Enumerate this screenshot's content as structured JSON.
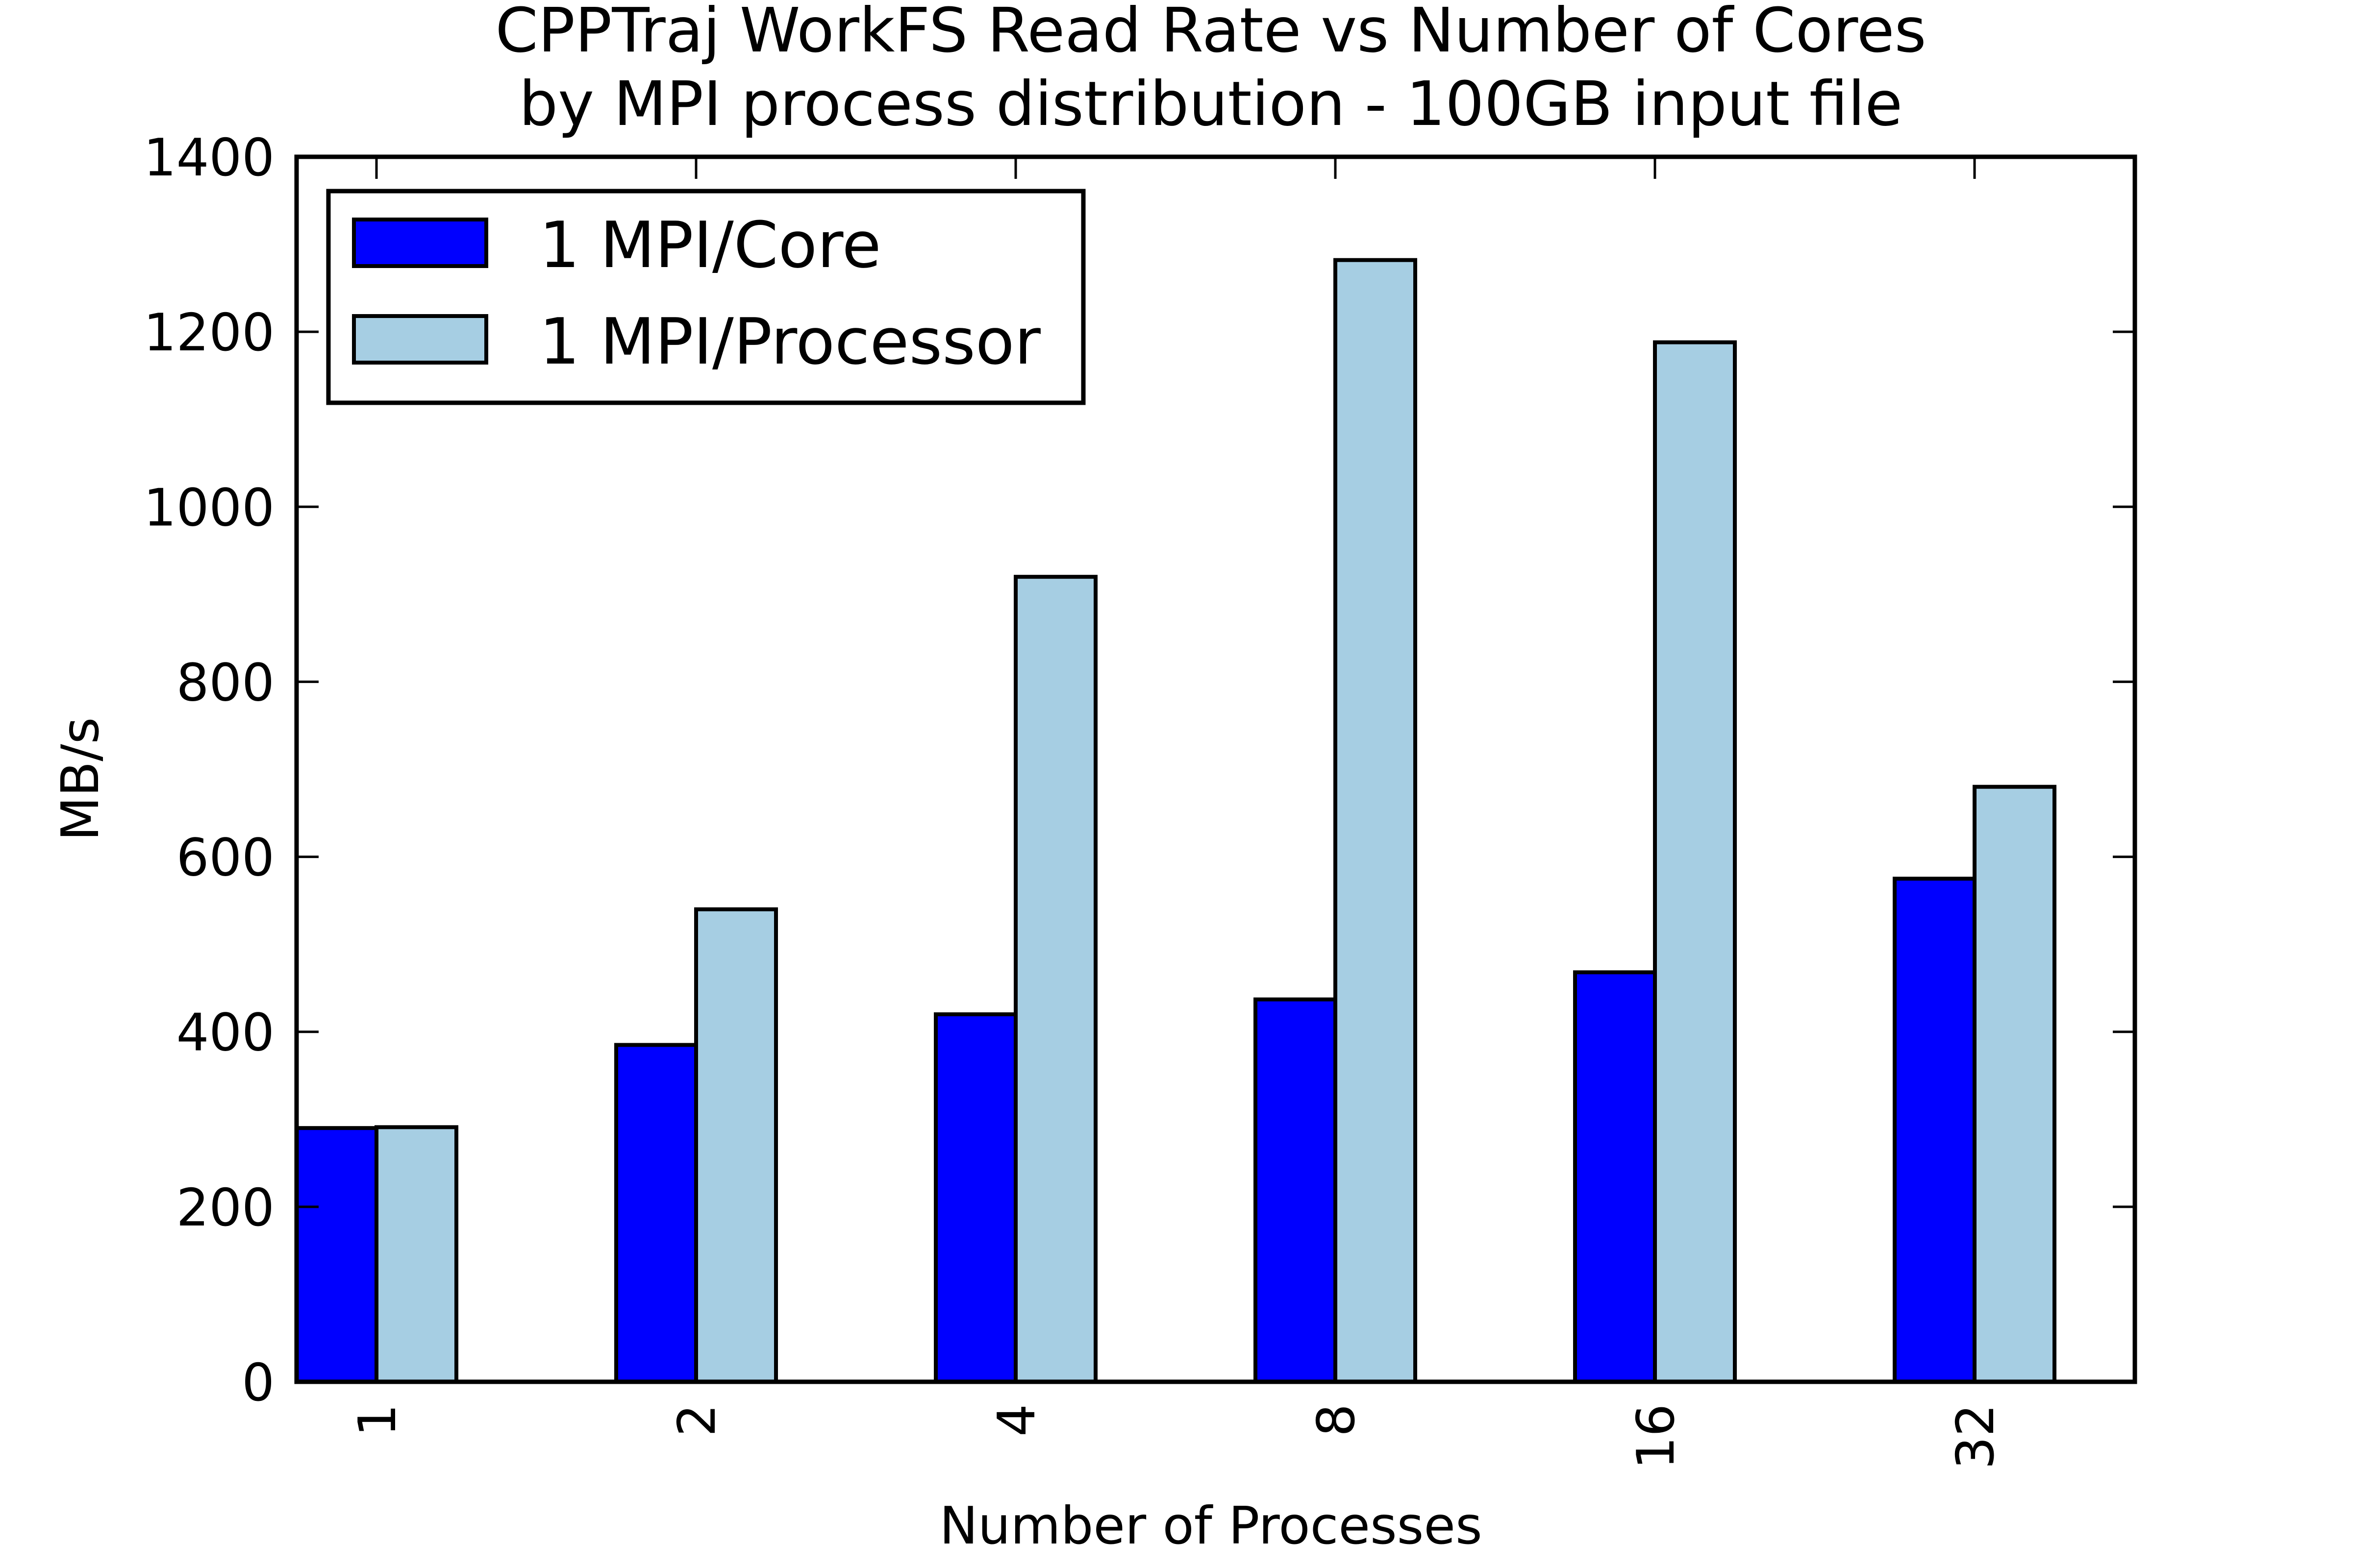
{
  "chart_data": {
    "type": "bar",
    "title": "CPPTraj WorkFS Read Rate vs Number of Cores",
    "subtitle": "by MPI process distribution - 100GB input file",
    "xlabel": "Number of Processes",
    "ylabel": "MB/s",
    "categories": [
      "1",
      "2",
      "4",
      "8",
      "16",
      "32"
    ],
    "series": [
      {
        "name": "1 MPI/Core",
        "values": [
          290,
          385,
          420,
          437,
          468,
          575
        ],
        "color": "#0000ff"
      },
      {
        "name": "1 MPI/Processor",
        "values": [
          291,
          540,
          920,
          1282,
          1188,
          680
        ],
        "color": "#a6cee3"
      }
    ],
    "ylim": [
      0,
      1400
    ],
    "yticks": [
      0,
      200,
      400,
      600,
      800,
      1000,
      1200,
      1400
    ],
    "grid": false,
    "legend_position": "top-left"
  }
}
